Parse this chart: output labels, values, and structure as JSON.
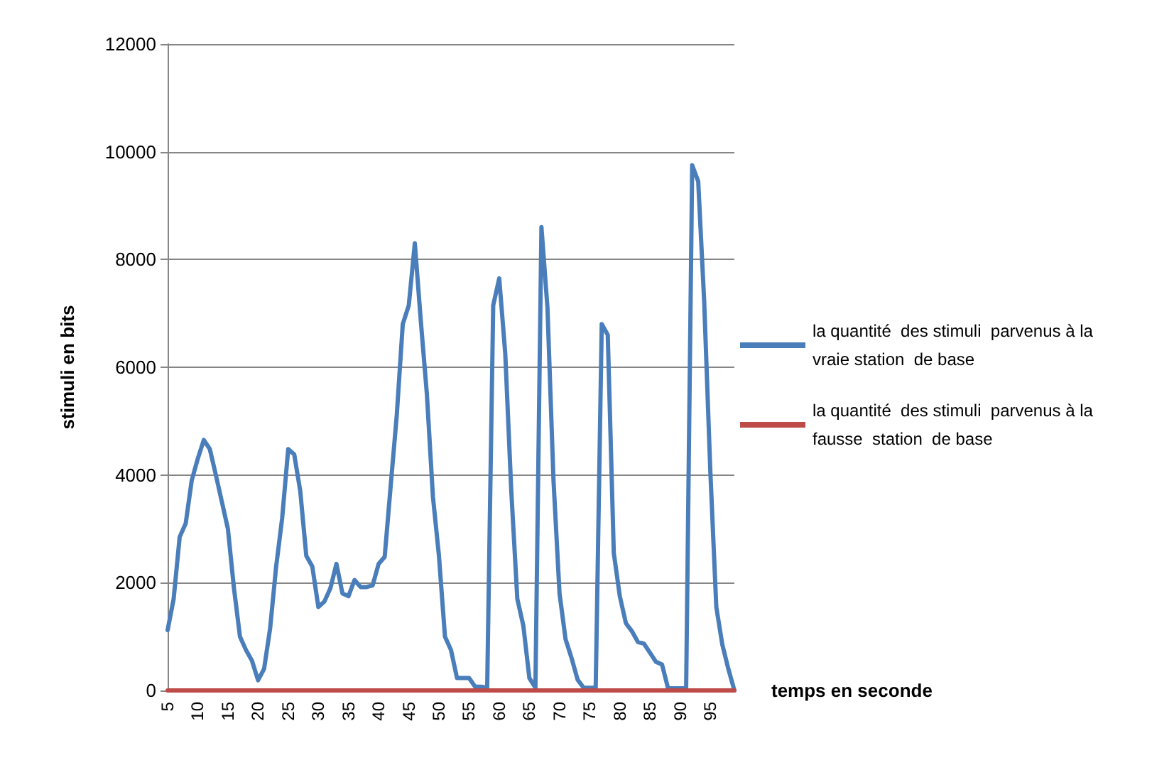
{
  "chart_data": {
    "type": "line",
    "xlabel": "temps en seconde",
    "ylabel": "stimuli en bits",
    "categories": [
      "5",
      null,
      null,
      null,
      null,
      "10",
      null,
      null,
      null,
      null,
      "15",
      null,
      null,
      null,
      null,
      "20",
      null,
      null,
      null,
      null,
      "25",
      null,
      null,
      null,
      null,
      "30",
      null,
      null,
      null,
      null,
      "35",
      null,
      null,
      null,
      null,
      "40",
      null,
      null,
      null,
      null,
      "45",
      null,
      null,
      null,
      null,
      "50",
      null,
      null,
      null,
      null,
      "55",
      null,
      null,
      null,
      null,
      "60",
      null,
      null,
      null,
      null,
      "65",
      null,
      null,
      null,
      null,
      "70",
      null,
      null,
      null,
      null,
      "75",
      null,
      null,
      null,
      null,
      "80",
      null,
      null,
      null,
      null,
      "85",
      null,
      null,
      null,
      null,
      "90",
      null,
      null,
      null,
      null,
      "95",
      null,
      null,
      null,
      null
    ],
    "series": [
      {
        "name": "la quantité  des stimuli  parvenus à la vraie station  de base",
        "color": "#4a7ebb",
        "values": [
          1120,
          1700,
          2850,
          3100,
          3900,
          4300,
          4650,
          4480,
          4000,
          3500,
          3000,
          1900,
          1000,
          750,
          550,
          190,
          400,
          1150,
          2300,
          3200,
          4480,
          4380,
          3700,
          2500,
          2300,
          1550,
          1650,
          1900,
          2350,
          1800,
          1750,
          2050,
          1920,
          1920,
          1950,
          2350,
          2480,
          3800,
          5100,
          6800,
          7150,
          8300,
          6850,
          5500,
          3600,
          2500,
          1000,
          750,
          230,
          230,
          230,
          70,
          70,
          50,
          7150,
          7650,
          6250,
          3700,
          1700,
          1200,
          230,
          50,
          8600,
          7100,
          3900,
          1800,
          950,
          600,
          200,
          50,
          50,
          50,
          6800,
          6600,
          2550,
          1750,
          1250,
          1100,
          900,
          870,
          700,
          530,
          480,
          40,
          40,
          40,
          40,
          9750,
          9450,
          7200,
          4100,
          1550,
          850,
          400,
          0
        ]
      },
      {
        "name": "la quantité  des stimuli  parvenus à la fausse  station  de base",
        "color": "#be4b48",
        "values": [
          0,
          0,
          0,
          0,
          0,
          0,
          0,
          0,
          0,
          0,
          0,
          0,
          0,
          0,
          0,
          0,
          0,
          0,
          0,
          0,
          0,
          0,
          0,
          0,
          0,
          0,
          0,
          0,
          0,
          0,
          0,
          0,
          0,
          0,
          0,
          0,
          0,
          0,
          0,
          0,
          0,
          0,
          0,
          0,
          0,
          0,
          0,
          0,
          0,
          0,
          0,
          0,
          0,
          0,
          0,
          0,
          0,
          0,
          0,
          0,
          0,
          0,
          0,
          0,
          0,
          0,
          0,
          0,
          0,
          0,
          0,
          0,
          0,
          0,
          0,
          0,
          0,
          0,
          0,
          0,
          0,
          0,
          0,
          0,
          0,
          0,
          0,
          0,
          0,
          0,
          0,
          0,
          0,
          0,
          0
        ]
      }
    ],
    "ylim": [
      0,
      12000
    ],
    "yticks": [
      0,
      2000,
      4000,
      6000,
      8000,
      10000,
      12000
    ],
    "grid": "y",
    "legend": "right",
    "marker": "none",
    "line_style": "solid"
  }
}
